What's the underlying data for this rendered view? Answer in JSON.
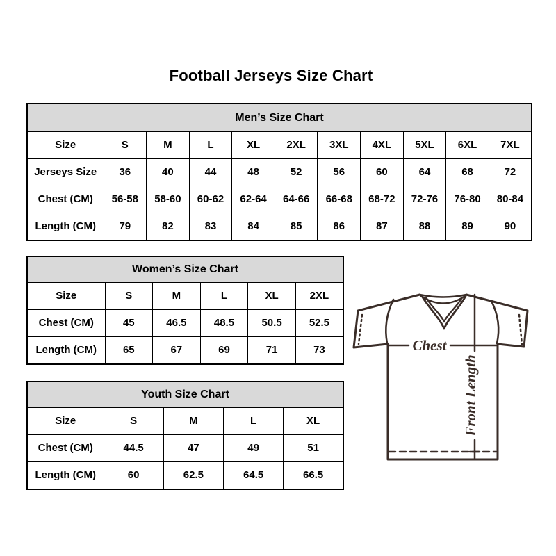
{
  "page": {
    "title": "Football Jerseys Size Chart"
  },
  "tables": {
    "men": {
      "title": "Men’s Size Chart",
      "rows": [
        [
          "Size",
          "S",
          "M",
          "L",
          "XL",
          "2XL",
          "3XL",
          "4XL",
          "5XL",
          "6XL",
          "7XL"
        ],
        [
          "Jerseys Size",
          "36",
          "40",
          "44",
          "48",
          "52",
          "56",
          "60",
          "64",
          "68",
          "72"
        ],
        [
          "Chest (CM)",
          "56-58",
          "58-60",
          "60-62",
          "62-64",
          "64-66",
          "66-68",
          "68-72",
          "72-76",
          "76-80",
          "80-84"
        ],
        [
          "Length (CM)",
          "79",
          "82",
          "83",
          "84",
          "85",
          "86",
          "87",
          "88",
          "89",
          "90"
        ]
      ]
    },
    "women": {
      "title": "Women’s Size Chart",
      "rows": [
        [
          "Size",
          "S",
          "M",
          "L",
          "XL",
          "2XL"
        ],
        [
          "Chest (CM)",
          "45",
          "46.5",
          "48.5",
          "50.5",
          "52.5"
        ],
        [
          "Length (CM)",
          "65",
          "67",
          "69",
          "71",
          "73"
        ]
      ]
    },
    "youth": {
      "title": "Youth Size Chart",
      "rows": [
        [
          "Size",
          "S",
          "M",
          "L",
          "XL"
        ],
        [
          "Chest (CM)",
          "44.5",
          "47",
          "49",
          "51"
        ],
        [
          "Length (CM)",
          "60",
          "62.5",
          "64.5",
          "66.5"
        ]
      ]
    }
  },
  "diagram": {
    "chest_label": "Chest",
    "front_length_label": "Front Length"
  },
  "colors": {
    "header_bg": "#d9d9d9",
    "table_border": "#000000",
    "text": "#000000",
    "jersey_stroke": "#3a2d28",
    "background": "#ffffff"
  }
}
